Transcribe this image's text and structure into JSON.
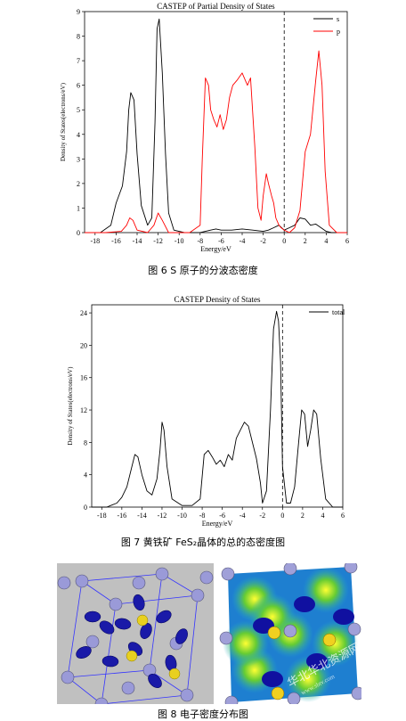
{
  "figures": {
    "fig6": {
      "caption": "图 6 S 原子的分波态密度",
      "chart_data": {
        "type": "line",
        "title": "CASTEP of Partial Density of States",
        "xlabel": "Energy/eV",
        "ylabel": "Density of States(electrons/eV)",
        "xlim": [
          -19,
          6
        ],
        "ylim": [
          0,
          9
        ],
        "xticks": [
          "-18",
          "-16",
          "-14",
          "-12",
          "-10",
          "-8",
          "-6",
          "-4",
          "-2",
          "0",
          "2",
          "4",
          "6"
        ],
        "yticks": [
          "0",
          "1",
          "2",
          "3",
          "4",
          "5",
          "6",
          "7",
          "8",
          "9"
        ],
        "fermi_level": 0,
        "legend_position": "top-right",
        "series": [
          {
            "name": "s",
            "color": "#000000",
            "x": [
              -19,
              -17.5,
              -16.5,
              -16,
              -15.4,
              -15,
              -14.8,
              -14.6,
              -14.3,
              -14,
              -13.6,
              -13,
              -12.6,
              -12.3,
              -12.1,
              -11.9,
              -11.6,
              -11.3,
              -11,
              -10.5,
              -9.5,
              -8,
              -7.5,
              -7,
              -6.5,
              -6,
              -5,
              -4,
              -3,
              -2,
              -1.5,
              -1,
              -0.5,
              0,
              0.5,
              1,
              1.5,
              2,
              2.5,
              3,
              3.5,
              4,
              4.5,
              6
            ],
            "y": [
              0,
              0,
              0.3,
              1.2,
              1.9,
              3.3,
              5.0,
              5.7,
              5.4,
              3.2,
              1.1,
              0.3,
              0.6,
              4.5,
              8.3,
              8.7,
              6.5,
              3.2,
              0.8,
              0.1,
              0,
              0,
              0.05,
              0.1,
              0.15,
              0.1,
              0.1,
              0.15,
              0.1,
              0.05,
              0.1,
              0.2,
              0.3,
              0.1,
              0.2,
              0.3,
              0.6,
              0.55,
              0.3,
              0.35,
              0.2,
              0.05,
              0,
              0
            ]
          },
          {
            "name": "p",
            "color": "#ff0000",
            "x": [
              -19,
              -17,
              -15.5,
              -15,
              -14.7,
              -14.4,
              -14,
              -13,
              -12.4,
              -12,
              -11.6,
              -11,
              -10,
              -9,
              -8,
              -7.8,
              -7.5,
              -7.2,
              -7,
              -6.7,
              -6.4,
              -6.1,
              -5.8,
              -5.5,
              -5.2,
              -4.9,
              -4.5,
              -4,
              -3.5,
              -3.2,
              -2.8,
              -2.5,
              -2.2,
              -2,
              -1.7,
              -1.5,
              -1.2,
              -1,
              -0.8,
              -0.5,
              -0.3,
              0,
              0.5,
              1,
              1.5,
              2,
              2.5,
              3,
              3.3,
              3.6,
              3.9,
              4.3,
              5,
              6
            ],
            "y": [
              0,
              0,
              0.05,
              0.3,
              0.6,
              0.5,
              0.1,
              0,
              0.3,
              0.8,
              0.5,
              0,
              0,
              0,
              0.3,
              3.0,
              6.3,
              6.0,
              5.0,
              4.6,
              4.3,
              4.8,
              4.2,
              4.6,
              5.5,
              6.0,
              6.2,
              6.5,
              6.0,
              6.3,
              3.5,
              1.0,
              0.5,
              1.5,
              2.4,
              2.0,
              1.5,
              1.2,
              0.6,
              0.3,
              0.2,
              0.1,
              0,
              0.2,
              0.9,
              3.3,
              4.0,
              6.2,
              7.4,
              6.0,
              2.5,
              0.3,
              0,
              0
            ]
          }
        ]
      }
    },
    "fig7": {
      "caption": "图 7 黄铁矿 FeS₂晶体的总的态密度图",
      "chart_data": {
        "type": "line",
        "title": "CASTEP Density of States",
        "xlabel": "Energy/eV",
        "ylabel": "Density of States(electrons/eV)",
        "xlim": [
          -19,
          6
        ],
        "ylim": [
          0,
          25
        ],
        "xticks": [
          "-18",
          "-16",
          "-14",
          "-12",
          "-10",
          "-8",
          "-6",
          "-4",
          "-2",
          "0",
          "2",
          "4",
          "6"
        ],
        "yticks": [
          "0",
          "4",
          "8",
          "12",
          "16",
          "20",
          "24"
        ],
        "fermi_level": 0,
        "legend_position": "top-right",
        "series": [
          {
            "name": "total",
            "color": "#000000",
            "x": [
              -19,
              -17.5,
              -16.5,
              -16,
              -15.5,
              -15,
              -14.7,
              -14.4,
              -14,
              -13.5,
              -13,
              -12.5,
              -12.2,
              -12,
              -11.8,
              -11.5,
              -11,
              -10,
              -9,
              -8.2,
              -7.8,
              -7.4,
              -7,
              -6.6,
              -6.2,
              -5.8,
              -5.4,
              -5,
              -4.6,
              -4.2,
              -3.8,
              -3.4,
              -3,
              -2.6,
              -2.2,
              -2,
              -1.6,
              -1.2,
              -0.9,
              -0.6,
              -0.4,
              -0.2,
              0,
              0.4,
              0.8,
              1.2,
              1.6,
              1.9,
              2.2,
              2.5,
              2.8,
              3.1,
              3.4,
              3.8,
              4.3,
              5,
              6
            ],
            "y": [
              0,
              0,
              0.5,
              1.2,
              2.5,
              5.0,
              6.5,
              6.2,
              4.0,
              2.0,
              1.5,
              3.5,
              7.0,
              10.5,
              9.5,
              5.0,
              1.0,
              0.2,
              0.2,
              1.0,
              6.5,
              7.0,
              6.2,
              5.3,
              5.8,
              5.0,
              6.5,
              5.8,
              8.5,
              9.5,
              10.5,
              10.0,
              8.0,
              6.0,
              3.0,
              0.5,
              2.0,
              12.0,
              22.0,
              24.2,
              23.0,
              18.0,
              5.0,
              0.5,
              0.5,
              2.5,
              8.0,
              12.0,
              11.5,
              7.5,
              9.5,
              12.0,
              11.5,
              6.0,
              1.0,
              0,
              0
            ]
          }
        ]
      }
    },
    "fig8": {
      "caption": "图 8 电子密度分布图",
      "watermark": "华北华北资源网",
      "watermark_url": "www.sbtv.com"
    }
  }
}
